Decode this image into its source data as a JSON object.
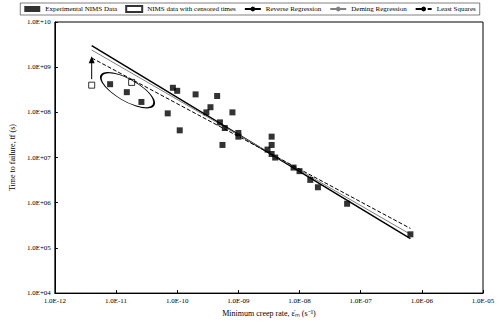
{
  "chart_data": {
    "type": "scatter",
    "x_label": "Minimum creep rate, ε̇ₘ (s⁻¹)",
    "y_label": "Time to failure, tf (s)",
    "log": true,
    "grid": false,
    "legend": "top",
    "xlim": [
      1e-12,
      1e-05
    ],
    "ylim": [
      10000.0,
      10000000000.0
    ],
    "xticks": [
      {
        "value": 1e-12,
        "label": "1.0E-12"
      },
      {
        "value": 1e-11,
        "label": "1.0E-11"
      },
      {
        "value": 1e-10,
        "label": "1.0E-10"
      },
      {
        "value": 1e-09,
        "label": "1.0E-09"
      },
      {
        "value": 1e-08,
        "label": "1.0E-08"
      },
      {
        "value": 1e-07,
        "label": "1.0E-07"
      },
      {
        "value": 1e-06,
        "label": "1.0E-06"
      },
      {
        "value": 1e-05,
        "label": "1.0E-05"
      }
    ],
    "yticks": [
      {
        "value": 10000.0,
        "label": "1.0E+04"
      },
      {
        "value": 100000.0,
        "label": "1.0E+05"
      },
      {
        "value": 1000000.0,
        "label": "1.0E+06"
      },
      {
        "value": 10000000.0,
        "label": "1.0E+07"
      },
      {
        "value": 100000000.0,
        "label": "1.0E+08"
      },
      {
        "value": 1000000000.0,
        "label": "1.0E+09"
      },
      {
        "value": 10000000000.0,
        "label": "1.0E+10"
      }
    ],
    "series": [
      {
        "name": "Experimental NIMS Data",
        "type": "scatter",
        "marker": "square",
        "color": "#000000",
        "x": [
          8e-12,
          1.5e-11,
          2.6e-11,
          7e-11,
          8.5e-11,
          1e-10,
          1.1e-10,
          2e-10,
          3e-10,
          3.5e-10,
          4.5e-10,
          5e-10,
          5.5e-10,
          6e-10,
          8e-10,
          1e-09,
          1e-09,
          3e-09,
          3.5e-09,
          3.5e-09,
          3.5e-09,
          4e-09,
          8e-09,
          1e-08,
          1.5e-08,
          2e-08,
          6e-08,
          6.5e-07
        ],
        "values": [
          420000000.0,
          280000000.0,
          170000000.0,
          95000000.0,
          350000000.0,
          300000000.0,
          40000000.0,
          250000000.0,
          100000000.0,
          130000000.0,
          230000000.0,
          60000000.0,
          19000000.0,
          45000000.0,
          100000000.0,
          29000000.0,
          35000000.0,
          15000000.0,
          29000000.0,
          19000000.0,
          12000000.0,
          10000000.0,
          6000000.0,
          5000000.0,
          3200000.0,
          2200000.0,
          950000.0,
          200000.0
        ]
      },
      {
        "name": "NIMS data with censored times",
        "type": "scatter",
        "marker": "open_square",
        "color": "#000000",
        "x": [
          4e-12,
          1.8e-11
        ],
        "values": [
          400000000.0,
          460000000.0
        ]
      },
      {
        "name": "Reverse Regression",
        "type": "line",
        "line_style": "solid",
        "color": "#000000",
        "x": [
          4e-12,
          6.5e-07
        ],
        "values": [
          3000000000.0,
          160000.0
        ]
      },
      {
        "name": "Deming Regression",
        "type": "line",
        "line_style": "solid",
        "color": "#808080",
        "x": [
          4e-12,
          6.5e-07
        ],
        "values": [
          2400000000.0,
          200000.0
        ]
      },
      {
        "name": "Least Squares",
        "type": "line",
        "line_style": "dashed",
        "color": "#000000",
        "x": [
          4e-12,
          6.5e-07
        ],
        "values": [
          1600000000.0,
          270000.0
        ]
      }
    ]
  }
}
